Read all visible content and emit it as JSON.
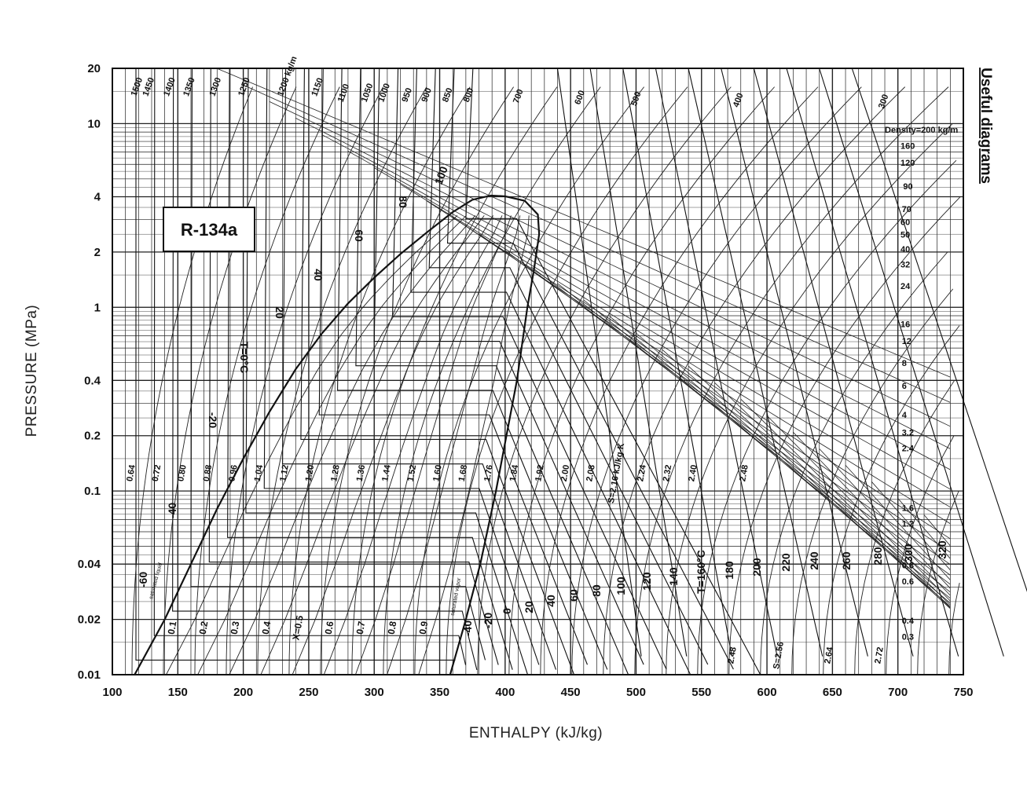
{
  "side_title": "Useful diagrams",
  "chart_data": {
    "type": "line",
    "refrigerant": "R-134a",
    "xlabel": "ENTHALPY (kJ/kg)",
    "ylabel": "PRESSURE (MPa)",
    "xlim": [
      100,
      750
    ],
    "ylim": [
      0.01,
      20
    ],
    "y_scale": "log",
    "grid": true,
    "x_ticks": [
      "100",
      "150",
      "200",
      "250",
      "300",
      "350",
      "400",
      "450",
      "500",
      "550",
      "600",
      "650",
      "700",
      "750"
    ],
    "y_ticks": [
      "0.01",
      "0.02",
      "0.04",
      "0.1",
      "0.2",
      "0.4",
      "1",
      "2",
      "4",
      "10",
      "20"
    ],
    "y_tick_values": [
      0.01,
      0.02,
      0.04,
      0.1,
      0.2,
      0.4,
      1,
      2,
      4,
      10,
      20
    ],
    "density_labels": [
      "1500",
      "1450",
      "1400",
      "1350",
      "1300",
      "1250",
      "1200 kg/m",
      "1150",
      "1100",
      "1050",
      "1000",
      "950",
      "900",
      "850",
      "800",
      "700",
      "600",
      "500",
      "400",
      "300",
      "Density=200 kg/m",
      "160",
      "120",
      "90",
      "70",
      "60",
      "50",
      "40",
      "32",
      "24",
      "16",
      "12",
      "8",
      "6",
      "4",
      "3.2",
      "2.4",
      "1.6",
      "1.2",
      "0.8",
      "0.6",
      "0.4",
      "0.3"
    ],
    "entropy_labels": [
      "0.64",
      "0.72",
      "0.80",
      "0.88",
      "0.96",
      "1.04",
      "1.12",
      "1.20",
      "1.28",
      "1.36",
      "1.44",
      "1.52",
      "1.60",
      "1.68",
      "1.76",
      "1.84",
      "1.92",
      "2.00",
      "2.08",
      "S=2.16 kJ/kg-K",
      "2.24",
      "2.32",
      "2.40",
      "2.48",
      "2.48",
      "S=2.56",
      "2.64",
      "2.72"
    ],
    "temperature_labels": [
      "-60",
      "-40",
      "-20",
      "T=0°C",
      "20",
      "40",
      "60",
      "80",
      "100",
      "-40",
      "-20",
      "0",
      "20",
      "40",
      "60",
      "80",
      "100",
      "120",
      "140",
      "T=160°C",
      "180",
      "200",
      "220",
      "240",
      "260",
      "280",
      "300",
      "320"
    ],
    "quality_labels": [
      "0.1",
      "0.2",
      "0.3",
      "0.4",
      "X=0.5",
      "0.6",
      "0.7",
      "0.8",
      "0.9"
    ],
    "region_labels": [
      "saturated liquid",
      "saturated vapor"
    ],
    "saturation_dome": {
      "liquid": [
        {
          "h": 117,
          "p": 0.01
        },
        {
          "h": 140,
          "p": 0.02
        },
        {
          "h": 160,
          "p": 0.04
        },
        {
          "h": 180,
          "p": 0.08
        },
        {
          "h": 200,
          "p": 0.15
        },
        {
          "h": 220,
          "p": 0.27
        },
        {
          "h": 240,
          "p": 0.46
        },
        {
          "h": 260,
          "p": 0.72
        },
        {
          "h": 280,
          "p": 1.05
        },
        {
          "h": 300,
          "p": 1.45
        },
        {
          "h": 320,
          "p": 1.95
        },
        {
          "h": 340,
          "p": 2.55
        },
        {
          "h": 360,
          "p": 3.3
        },
        {
          "h": 375,
          "p": 3.85
        },
        {
          "h": 389,
          "p": 4.06
        }
      ],
      "vapor": [
        {
          "h": 358,
          "p": 0.01
        },
        {
          "h": 370,
          "p": 0.02
        },
        {
          "h": 381,
          "p": 0.04
        },
        {
          "h": 393,
          "p": 0.1
        },
        {
          "h": 401,
          "p": 0.2
        },
        {
          "h": 409,
          "p": 0.4
        },
        {
          "h": 417,
          "p": 1.0
        },
        {
          "h": 422,
          "p": 1.6
        },
        {
          "h": 426,
          "p": 2.5
        },
        {
          "h": 425,
          "p": 3.2
        },
        {
          "h": 415,
          "p": 3.8
        },
        {
          "h": 400,
          "p": 4.02
        },
        {
          "h": 389,
          "p": 4.06
        }
      ]
    }
  }
}
